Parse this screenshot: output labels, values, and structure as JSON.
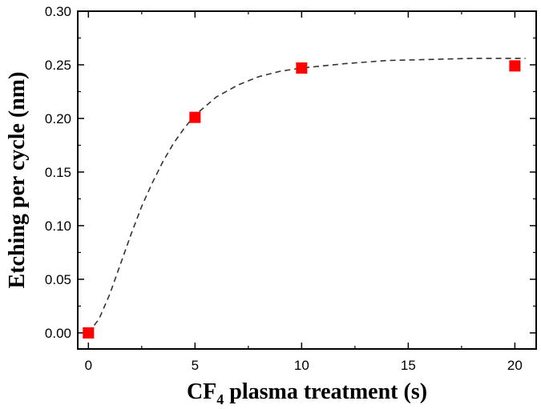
{
  "chart_data": {
    "type": "scatter",
    "x_title": {
      "main": "CF",
      "sub": "4",
      "rest": " plasma treatment (s)"
    },
    "ylabel": "Etching per cycle (nm)",
    "xlim": [
      -0.5,
      21
    ],
    "ylim": [
      -0.015,
      0.3
    ],
    "x_ticks": [
      0,
      5,
      10,
      15,
      20
    ],
    "x_tick_labels": [
      "0",
      "5",
      "10",
      "15",
      "20"
    ],
    "y_ticks": [
      0.0,
      0.05,
      0.1,
      0.15,
      0.2,
      0.25,
      0.3
    ],
    "y_tick_labels": [
      "0.00",
      "0.05",
      "0.10",
      "0.15",
      "0.20",
      "0.25",
      "0.30"
    ],
    "series": [
      {
        "type": "scatter",
        "marker": "square",
        "color": "#ff0000",
        "points": [
          {
            "x": 0,
            "y": 0.0
          },
          {
            "x": 5,
            "y": 0.201
          },
          {
            "x": 10,
            "y": 0.247
          },
          {
            "x": 20,
            "y": 0.249
          }
        ]
      },
      {
        "type": "line",
        "style": "dashed",
        "color": "#333333",
        "points": [
          {
            "x": 0.0,
            "y": 0.0
          },
          {
            "x": 0.5,
            "y": 0.013
          },
          {
            "x": 1.0,
            "y": 0.036
          },
          {
            "x": 1.5,
            "y": 0.064
          },
          {
            "x": 2.0,
            "y": 0.092
          },
          {
            "x": 2.5,
            "y": 0.118
          },
          {
            "x": 3.0,
            "y": 0.14
          },
          {
            "x": 3.5,
            "y": 0.16
          },
          {
            "x": 4.0,
            "y": 0.177
          },
          {
            "x": 4.5,
            "y": 0.191
          },
          {
            "x": 5.0,
            "y": 0.203
          },
          {
            "x": 6.0,
            "y": 0.22
          },
          {
            "x": 7.0,
            "y": 0.231
          },
          {
            "x": 8.0,
            "y": 0.239
          },
          {
            "x": 9.0,
            "y": 0.244
          },
          {
            "x": 10.0,
            "y": 0.247
          },
          {
            "x": 12.0,
            "y": 0.251
          },
          {
            "x": 14.0,
            "y": 0.254
          },
          {
            "x": 16.0,
            "y": 0.255
          },
          {
            "x": 18.0,
            "y": 0.256
          },
          {
            "x": 20.0,
            "y": 0.256
          },
          {
            "x": 20.5,
            "y": 0.256
          }
        ]
      }
    ],
    "grid": false
  }
}
